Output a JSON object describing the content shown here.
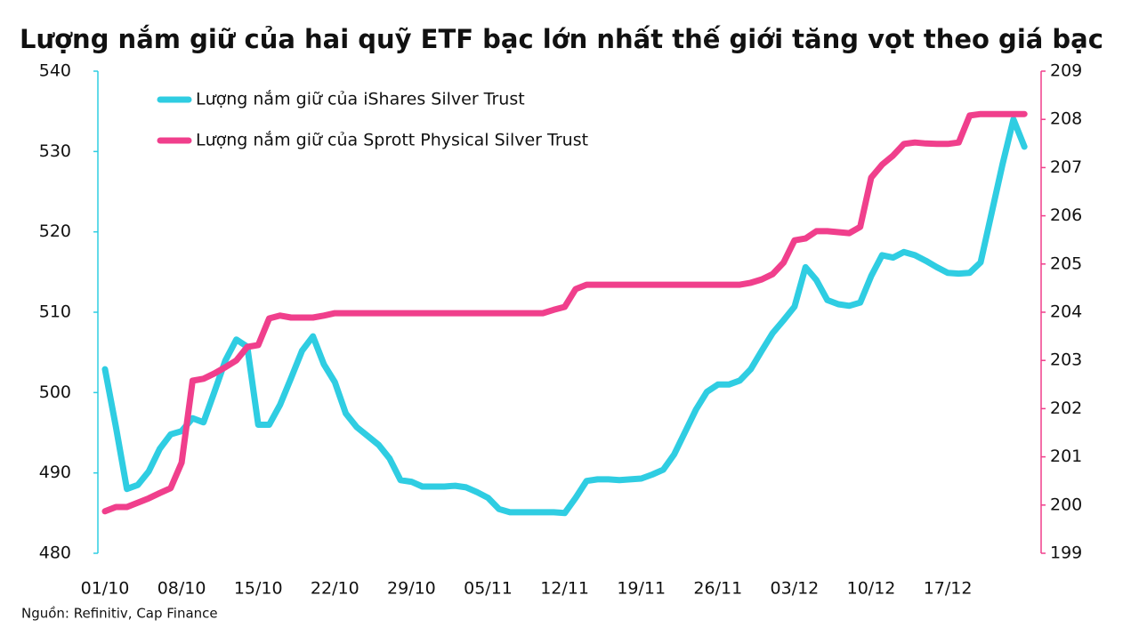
{
  "chart_data": {
    "type": "line",
    "title": "Lượng nắm giữ của hai quỹ ETF bạc lớn nhất thế giới tăng vọt theo giá bạc",
    "source": "Nguồn: Refinitiv, Cap Finance",
    "categories": [
      "01/10",
      null,
      null,
      null,
      null,
      null,
      null,
      "08/10",
      null,
      null,
      null,
      null,
      null,
      null,
      "15/10",
      null,
      null,
      null,
      null,
      null,
      null,
      "22/10",
      null,
      null,
      null,
      null,
      null,
      null,
      "29/10",
      null,
      null,
      null,
      null,
      null,
      null,
      "05/11",
      null,
      null,
      null,
      null,
      null,
      null,
      "12/11",
      null,
      null,
      null,
      null,
      null,
      null,
      "19/11",
      null,
      null,
      null,
      null,
      null,
      null,
      "26/11",
      null,
      null,
      null,
      null,
      null,
      null,
      "03/12",
      null,
      null,
      null,
      null,
      null,
      null,
      "10/12",
      null,
      null,
      null,
      null,
      null,
      null,
      "17/12",
      null,
      null,
      null,
      null,
      null,
      null,
      null
    ],
    "ylim": [
      480,
      540
    ],
    "yticks": [
      480,
      490,
      500,
      510,
      520,
      530,
      540
    ],
    "y2lim": [
      199,
      209
    ],
    "y2ticks": [
      199,
      200,
      201,
      202,
      203,
      204,
      205,
      206,
      207,
      208,
      209
    ],
    "legend": "upper left",
    "series": [
      {
        "name": "Lượng nắm giữ của iShares Silver Trust",
        "color": "#2fcde2",
        "axis": "y",
        "values": [
          502.9,
          495.7,
          488.0,
          488.5,
          490.2,
          493.0,
          494.8,
          495.2,
          496.8,
          496.3,
          500.1,
          504.0,
          506.6,
          505.7,
          496.0,
          496.0,
          498.5,
          501.8,
          505.2,
          507.0,
          503.5,
          501.3,
          497.4,
          495.7,
          494.6,
          493.5,
          491.8,
          489.1,
          488.9,
          488.3,
          488.3,
          488.3,
          488.4,
          488.2,
          487.6,
          486.9,
          485.5,
          485.1,
          485.1,
          485.1,
          485.1,
          485.1,
          485.0,
          486.9,
          489.0,
          489.2,
          489.2,
          489.1,
          489.2,
          489.3,
          489.8,
          490.4,
          492.3,
          495.1,
          497.9,
          500.1,
          501.0,
          501.0,
          501.5,
          502.9,
          505.2,
          507.4,
          509.0,
          510.7,
          515.6,
          514.0,
          511.5,
          511.0,
          510.8,
          511.2,
          514.5,
          517.1,
          516.8,
          517.5,
          517.1,
          516.4,
          515.6,
          514.9,
          514.8,
          514.9,
          516.2,
          522.3,
          528.4,
          534.0,
          530.6
        ]
      },
      {
        "name": "Lượng nắm giữ của Sprott Physical Silver Trust",
        "color": "#f03f8c",
        "axis": "y2",
        "values": [
          199.87,
          199.96,
          199.96,
          200.05,
          200.14,
          200.25,
          200.35,
          200.88,
          202.58,
          202.62,
          202.73,
          202.86,
          203.0,
          203.28,
          203.32,
          203.87,
          203.93,
          203.89,
          203.89,
          203.89,
          203.93,
          203.98,
          203.98,
          203.98,
          203.98,
          203.98,
          203.98,
          203.98,
          203.98,
          203.98,
          203.98,
          203.98,
          203.98,
          203.98,
          203.98,
          203.98,
          203.98,
          203.98,
          203.98,
          203.98,
          203.98,
          204.05,
          204.11,
          204.48,
          204.57,
          204.57,
          204.57,
          204.57,
          204.57,
          204.57,
          204.57,
          204.57,
          204.57,
          204.57,
          204.57,
          204.57,
          204.57,
          204.57,
          204.57,
          204.61,
          204.68,
          204.79,
          205.03,
          205.49,
          205.53,
          205.68,
          205.68,
          205.66,
          205.64,
          205.77,
          206.79,
          207.06,
          207.25,
          207.49,
          207.52,
          207.5,
          207.49,
          207.49,
          207.52,
          208.08,
          208.11,
          208.11,
          208.11,
          208.11,
          208.11
        ]
      }
    ]
  }
}
